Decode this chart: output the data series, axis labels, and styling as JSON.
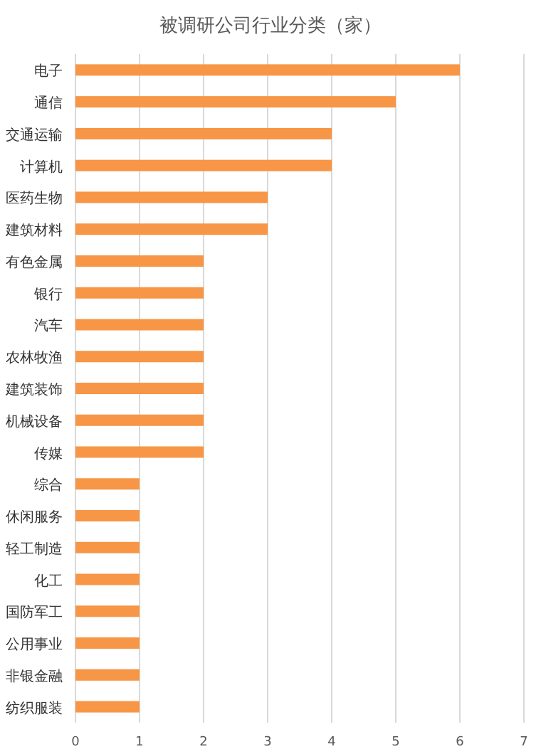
{
  "chart_data": {
    "type": "bar",
    "orientation": "horizontal",
    "title": "被调研公司行业分类（家）",
    "categories": [
      "电子",
      "通信",
      "交通运输",
      "计算机",
      "医药生物",
      "建筑材料",
      "有色金属",
      "银行",
      "汽车",
      "农林牧渔",
      "建筑装饰",
      "机械设备",
      "传媒",
      "综合",
      "休闲服务",
      "轻工制造",
      "化工",
      "国防军工",
      "公用事业",
      "非银金融",
      "纺织服装"
    ],
    "values": [
      6,
      5,
      4,
      4,
      3,
      3,
      2,
      2,
      2,
      2,
      2,
      2,
      2,
      1,
      1,
      1,
      1,
      1,
      1,
      1,
      1
    ],
    "color": "#f79646",
    "xlim": [
      0,
      7
    ],
    "xticks": [
      0,
      1,
      2,
      3,
      4,
      5,
      6,
      7
    ],
    "grid": "x"
  }
}
